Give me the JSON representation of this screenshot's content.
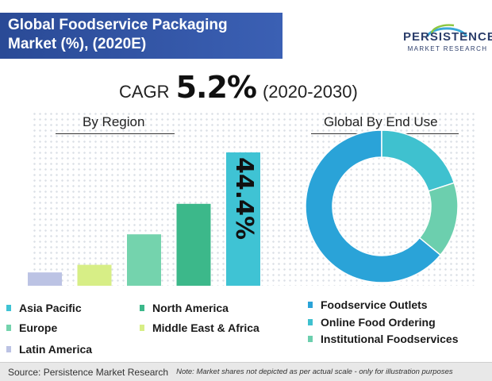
{
  "header": {
    "title_line1": "Global Foodservice Packaging",
    "title_line2": "Market (%), (2020E)"
  },
  "logo": {
    "name": "PERSISTENCE",
    "sub": "MARKET RESEARCH"
  },
  "cagr": {
    "label": "CAGR",
    "value": "5.2%",
    "period": "(2020-2030)"
  },
  "footer": {
    "source": "Source: Persistence Market Research",
    "note": "Note: Market shares not depicted as per actual scale - only for illustration purposes"
  },
  "colors": {
    "title_bg": "#2f52a6",
    "asia_pacific": "#3fc3d4",
    "north_america": "#3cb88a",
    "europe": "#74d3ad",
    "middle_east_africa": "#d7ee86",
    "latin_america": "#bcc3e4",
    "foodservice_outlets": "#2aa3d8",
    "online_food_ordering": "#3fc1cf",
    "institutional_foodservices": "#6ccfae"
  },
  "chart_data": [
    {
      "type": "bar",
      "title": "By Region",
      "categories": [
        "Latin America",
        "Middle East & Africa",
        "Europe",
        "North America",
        "Asia Pacific"
      ],
      "values": [
        7,
        11,
        27,
        43,
        70
      ],
      "data_labels": [
        "",
        "",
        "",
        "",
        "44.4%"
      ],
      "legend": [
        "Asia Pacific",
        "North America",
        "Europe",
        "Middle East & Africa",
        "Latin America"
      ],
      "legend_placement": "bottom",
      "grid": false,
      "note": "Market shares not depicted as per actual scale"
    },
    {
      "type": "pie",
      "title": "Global By End Use",
      "donut": true,
      "labels": [
        "Foodservice Outlets",
        "Online Food Ordering",
        "Institutional Foodservices"
      ],
      "values": [
        64,
        20,
        16
      ],
      "legend_placement": "bottom-right"
    }
  ]
}
